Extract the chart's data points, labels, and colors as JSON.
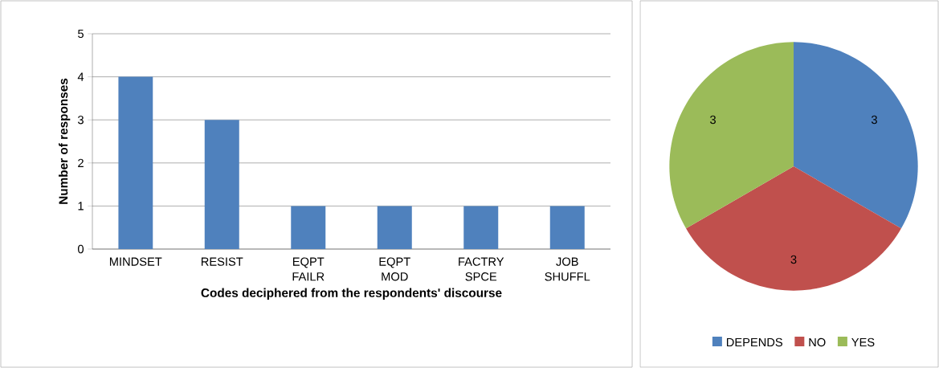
{
  "chart_data": [
    {
      "type": "bar",
      "xlabel": "Codes deciphered from the respondents' discourse",
      "ylabel": "Number of responses",
      "categories": [
        "MINDSET",
        "RESIST",
        "EQPT FAILR",
        "EQPT MOD",
        "FACTRY SPCE",
        "JOB SHUFFL"
      ],
      "values": [
        4,
        3,
        1,
        1,
        1,
        1
      ],
      "color": "#4f81bd",
      "ylim": [
        0,
        5
      ],
      "yticks": [
        0,
        1,
        2,
        3,
        4,
        5
      ],
      "grid": "y"
    },
    {
      "type": "pie",
      "categories": [
        "DEPENDS",
        "NO",
        "YES"
      ],
      "values": [
        3,
        3,
        3
      ],
      "colors": [
        "#4f81bd",
        "#c0504d",
        "#9bbb59"
      ],
      "data_labels": true,
      "legend": "bottom"
    }
  ]
}
